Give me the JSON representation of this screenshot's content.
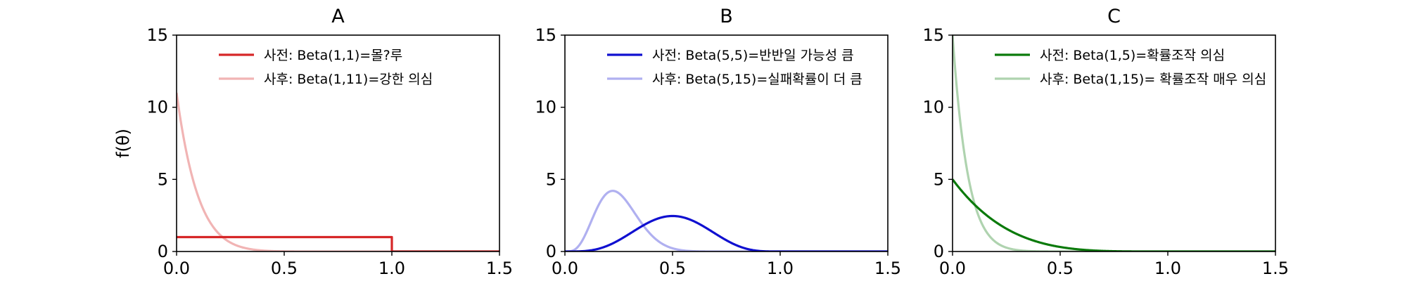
{
  "chart_data": [
    {
      "type": "line",
      "title": "A",
      "ylabel": "f(θ)",
      "xlim": [
        0,
        1.5
      ],
      "ylim": [
        0,
        15
      ],
      "xticks": [
        "0.0",
        "0.5",
        "1.0",
        "1.5"
      ],
      "yticks": [
        "0",
        "5",
        "10",
        "15"
      ],
      "legend_position": "upper center",
      "series": [
        {
          "name": "사전: Beta(1,1)=몰?루",
          "dist": "beta",
          "a": 1,
          "b": 1,
          "color": "#d62728",
          "opacity": 1.0
        },
        {
          "name": "사후: Beta(1,11)=강한 의심",
          "dist": "beta",
          "a": 1,
          "b": 11,
          "color": "#d62728",
          "opacity": 0.35
        }
      ]
    },
    {
      "type": "line",
      "title": "B",
      "xlim": [
        0,
        1.5
      ],
      "ylim": [
        0,
        15
      ],
      "xticks": [
        "0.0",
        "0.5",
        "1.0",
        "1.5"
      ],
      "yticks": [
        "0",
        "5",
        "10",
        "15"
      ],
      "legend_position": "upper center",
      "series": [
        {
          "name": "사전: Beta(5,5)=반반일 가능성 큼",
          "dist": "beta",
          "a": 5,
          "b": 5,
          "color": "#1010d0",
          "opacity": 1.0
        },
        {
          "name": "사후: Beta(5,15)=실패확률이 더 큼",
          "dist": "beta",
          "a": 5,
          "b": 15,
          "color": "#1010d0",
          "opacity": 0.33
        }
      ]
    },
    {
      "type": "line",
      "title": "C",
      "xlim": [
        0,
        1.5
      ],
      "ylim": [
        0,
        15
      ],
      "xticks": [
        "0.0",
        "0.5",
        "1.0",
        "1.5"
      ],
      "yticks": [
        "0",
        "5",
        "10",
        "15"
      ],
      "legend_position": "upper center",
      "series": [
        {
          "name": "사전: Beta(1,5)=확률조작 의심",
          "dist": "beta",
          "a": 1,
          "b": 5,
          "color": "#0b7a0b",
          "opacity": 1.0
        },
        {
          "name": "사후: Beta(1,15)= 확률조작 매우 의심",
          "dist": "beta",
          "a": 1,
          "b": 15,
          "color": "#0b7a0b",
          "opacity": 0.33
        }
      ]
    }
  ]
}
